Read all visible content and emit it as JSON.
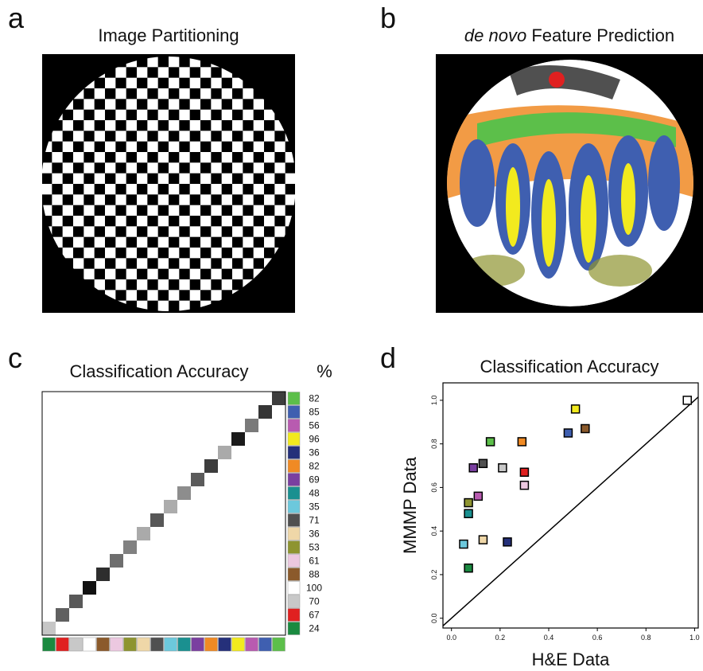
{
  "panels": {
    "a": {
      "label": "a",
      "title": "Image Partitioning"
    },
    "b": {
      "label": "b",
      "title_italic": "de novo",
      "title": "Feature Prediction"
    },
    "c": {
      "label": "c"
    },
    "d": {
      "label": "d"
    }
  },
  "chart_data": [
    {
      "type": "heatmap",
      "title": "Classification Accuracy",
      "value_header": "%",
      "colors": [
        "#5cbf4a",
        "#3f5fb0",
        "#b85bb0",
        "#f2ea1e",
        "#25307a",
        "#f08a24",
        "#7a3fa0",
        "#1a9090",
        "#6cc8dc",
        "#505050",
        "#efd7a8",
        "#8e9430",
        "#ecc8e0",
        "#8b5a2b",
        "#ffffff",
        "#c8c8c8",
        "#e02020",
        "#1a8a40"
      ],
      "values": [
        82,
        85,
        56,
        96,
        36,
        82,
        69,
        48,
        35,
        71,
        36,
        53,
        61,
        88,
        100,
        70,
        67,
        24
      ]
    },
    {
      "type": "scatter",
      "title": "Classification Accuracy",
      "xlabel": "H&E Data",
      "ylabel": "MMMP Data",
      "x": [
        0.97,
        0.51,
        0.48,
        0.55,
        0.29,
        0.16,
        0.13,
        0.21,
        0.09,
        0.3,
        0.11,
        0.3,
        0.07,
        0.07,
        0.13,
        0.23,
        0.05,
        0.07
      ],
      "values": [
        1.0,
        0.96,
        0.85,
        0.87,
        0.81,
        0.81,
        0.71,
        0.69,
        0.69,
        0.67,
        0.56,
        0.61,
        0.53,
        0.48,
        0.36,
        0.35,
        0.34,
        0.23
      ],
      "colors": [
        "#ffffff",
        "#f2ea1e",
        "#3f5fb0",
        "#8b5a2b",
        "#f08a24",
        "#5cbf4a",
        "#505050",
        "#c8c8c8",
        "#7a3fa0",
        "#e02020",
        "#b85bb0",
        "#ecc8e0",
        "#8e9430",
        "#1a9090",
        "#efd7a8",
        "#25307a",
        "#6cc8dc",
        "#1a8a40"
      ],
      "xlim": [
        -0.035,
        1.015
      ],
      "ylim": [
        -0.045,
        1.08
      ],
      "xticks": [
        {
          "value": 0,
          "label": "0.0"
        },
        {
          "value": 0.2,
          "label": "0.2"
        },
        {
          "value": 0.4,
          "label": "0.4"
        },
        {
          "value": 0.6,
          "label": "0.6"
        },
        {
          "value": 0.8,
          "label": "0.8"
        },
        {
          "value": 1,
          "label": "1.0"
        }
      ],
      "yticks": [
        {
          "value": 0,
          "label": "0.0"
        },
        {
          "value": 0.2,
          "label": "0.2"
        },
        {
          "value": 0.4,
          "label": "0.4"
        },
        {
          "value": 0.6,
          "label": "0.6"
        },
        {
          "value": 0.8,
          "label": "0.8"
        },
        {
          "value": 1,
          "label": "1.0"
        }
      ]
    }
  ]
}
